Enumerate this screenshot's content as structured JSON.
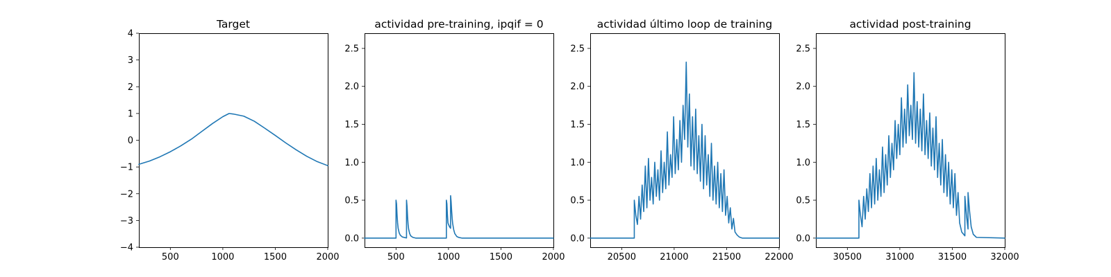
{
  "chart_data": [
    {
      "type": "line",
      "title": "Target",
      "xlabel": "",
      "ylabel": "",
      "xlim": [
        200,
        2000
      ],
      "ylim": [
        -4,
        4
      ],
      "xticks": [
        500,
        1000,
        1500,
        2000
      ],
      "xtick_labels": [
        "500",
        "1000",
        "1500",
        "2000"
      ],
      "yticks": [
        -4,
        -3,
        -2,
        -1,
        0,
        1,
        2,
        3,
        4
      ],
      "ytick_labels": [
        "−4",
        "−3",
        "−2",
        "−1",
        "0",
        "1",
        "2",
        "3",
        "4"
      ],
      "grid": false,
      "color": "#1f77b4",
      "series": [
        {
          "x": [
            200,
            300,
            400,
            500,
            600,
            700,
            800,
            900,
            1000,
            1060,
            1100,
            1200,
            1300,
            1400,
            1500,
            1600,
            1700,
            1800,
            1900,
            2000
          ],
          "y": [
            -0.9,
            -0.78,
            -0.62,
            -0.43,
            -0.21,
            0.04,
            0.33,
            0.62,
            0.88,
            1.0,
            0.98,
            0.9,
            0.71,
            0.45,
            0.18,
            -0.1,
            -0.36,
            -0.6,
            -0.8,
            -0.95
          ]
        }
      ]
    },
    {
      "type": "line",
      "title": "actividad pre-training, ipqif = 0",
      "xlabel": "",
      "ylabel": "",
      "xlim": [
        200,
        2000
      ],
      "ylim": [
        -0.12,
        2.7
      ],
      "xticks": [
        500,
        1000,
        1500,
        2000
      ],
      "xtick_labels": [
        "500",
        "1000",
        "1500",
        "2000"
      ],
      "yticks": [
        0.0,
        0.5,
        1.0,
        1.5,
        2.0,
        2.5
      ],
      "ytick_labels": [
        "0.0",
        "0.5",
        "1.0",
        "1.5",
        "2.0",
        "2.5"
      ],
      "grid": false,
      "color": "#1f77b4",
      "series": [
        {
          "x": [
            200,
            500,
            500,
            505,
            510,
            515,
            520,
            530,
            540,
            560,
            590,
            600,
            600,
            605,
            610,
            615,
            620,
            630,
            640,
            660,
            690,
            980,
            980,
            985,
            990,
            995,
            1000,
            1010,
            1020,
            1020,
            1025,
            1030,
            1035,
            1040,
            1050,
            1060,
            1080,
            1100,
            1130,
            2000
          ],
          "y": [
            0,
            0,
            0.5,
            0.45,
            0.3,
            0.2,
            0.13,
            0.07,
            0.04,
            0.015,
            0.005,
            0.002,
            0.5,
            0.42,
            0.28,
            0.18,
            0.12,
            0.06,
            0.03,
            0.01,
            0,
            0,
            0.5,
            0.45,
            0.3,
            0.2,
            0.18,
            0.15,
            0.13,
            0.56,
            0.48,
            0.36,
            0.26,
            0.19,
            0.11,
            0.06,
            0.02,
            0.008,
            0,
            0
          ]
        }
      ]
    },
    {
      "type": "line",
      "title": "actividad último loop de training",
      "xlabel": "",
      "ylabel": "",
      "xlim": [
        20200,
        22000
      ],
      "ylim": [
        -0.12,
        2.7
      ],
      "xticks": [
        20500,
        21000,
        21500,
        22000
      ],
      "xtick_labels": [
        "20500",
        "21000",
        "21500",
        "22000"
      ],
      "yticks": [
        0.0,
        0.5,
        1.0,
        1.5,
        2.0,
        2.5
      ],
      "ytick_labels": [
        "0.0",
        "0.5",
        "1.0",
        "1.5",
        "2.0",
        "2.5"
      ],
      "grid": false,
      "color": "#1f77b4",
      "series": [
        {
          "x": [
            20200,
            20620,
            20620,
            20635,
            20650,
            20665,
            20680,
            20695,
            20710,
            20725,
            20740,
            20755,
            20770,
            20785,
            20800,
            20815,
            20830,
            20845,
            20860,
            20875,
            20890,
            20905,
            20920,
            20935,
            20950,
            20965,
            20980,
            20995,
            21010,
            21025,
            21040,
            21055,
            21070,
            21085,
            21100,
            21115,
            21130,
            21145,
            21160,
            21175,
            21190,
            21205,
            21220,
            21235,
            21250,
            21265,
            21280,
            21295,
            21310,
            21325,
            21340,
            21355,
            21370,
            21385,
            21400,
            21415,
            21430,
            21445,
            21460,
            21475,
            21490,
            21505,
            21520,
            21535,
            21550,
            21565,
            21580,
            21600,
            21620,
            21650,
            22000
          ],
          "y": [
            0,
            0,
            0.5,
            0.3,
            0.18,
            0.55,
            0.25,
            0.7,
            0.35,
            0.95,
            0.4,
            1.05,
            0.5,
            0.8,
            0.45,
            1.0,
            0.55,
            0.9,
            0.5,
            1.15,
            0.6,
            1.0,
            0.65,
            1.4,
            0.7,
            1.1,
            0.8,
            1.6,
            0.85,
            1.3,
            0.9,
            1.55,
            1.0,
            1.75,
            1.3,
            2.32,
            1.2,
            1.9,
            0.95,
            1.6,
            0.9,
            1.7,
            0.85,
            1.35,
            0.75,
            1.5,
            0.65,
            1.35,
            0.7,
            1.1,
            0.55,
            1.25,
            0.5,
            0.95,
            0.45,
            1.0,
            0.4,
            0.85,
            0.35,
            0.9,
            0.3,
            0.55,
            0.2,
            0.4,
            0.12,
            0.26,
            0.08,
            0.04,
            0.015,
            0,
            0
          ]
        }
      ]
    },
    {
      "type": "line",
      "title": "actividad post-training",
      "xlabel": "",
      "ylabel": "",
      "xlim": [
        30200,
        32000
      ],
      "ylim": [
        -0.12,
        2.7
      ],
      "xticks": [
        30500,
        31000,
        31500,
        32000
      ],
      "xtick_labels": [
        "30500",
        "31000",
        "31500",
        "32000"
      ],
      "yticks": [
        0.0,
        0.5,
        1.0,
        1.5,
        2.0,
        2.5
      ],
      "ytick_labels": [
        "0.0",
        "0.5",
        "1.0",
        "1.5",
        "2.0",
        "2.5"
      ],
      "grid": false,
      "color": "#1f77b4",
      "series": [
        {
          "x": [
            30200,
            30610,
            30610,
            30625,
            30640,
            30655,
            30670,
            30685,
            30700,
            30715,
            30730,
            30745,
            30760,
            30775,
            30790,
            30805,
            30820,
            30835,
            30850,
            30865,
            30880,
            30895,
            30910,
            30925,
            30940,
            30955,
            30970,
            30985,
            31000,
            31015,
            31030,
            31045,
            31060,
            31075,
            31090,
            31105,
            31120,
            31135,
            31150,
            31165,
            31180,
            31195,
            31210,
            31225,
            31240,
            31255,
            31270,
            31285,
            31300,
            31315,
            31330,
            31345,
            31360,
            31375,
            31390,
            31405,
            31420,
            31435,
            31450,
            31465,
            31480,
            31495,
            31510,
            31525,
            31540,
            31555,
            31570,
            31590,
            31620,
            31620,
            31635,
            31650,
            31650,
            31665,
            31680,
            31700,
            31730,
            32000
          ],
          "y": [
            0,
            0,
            0.5,
            0.3,
            0.15,
            0.55,
            0.25,
            0.65,
            0.35,
            0.85,
            0.4,
            0.95,
            0.45,
            1.05,
            0.5,
            0.9,
            0.55,
            1.2,
            0.6,
            1.1,
            0.7,
            1.35,
            0.8,
            1.25,
            0.9,
            1.55,
            1.05,
            1.5,
            1.1,
            1.85,
            1.2,
            1.7,
            1.25,
            2.02,
            1.35,
            1.75,
            1.3,
            2.18,
            1.25,
            1.8,
            1.2,
            1.7,
            1.15,
            1.9,
            1.1,
            1.55,
            1.05,
            1.65,
            0.95,
            1.45,
            0.9,
            1.6,
            0.8,
            1.25,
            0.7,
            1.3,
            0.6,
            1.1,
            0.55,
            1.0,
            0.45,
            0.9,
            0.4,
            0.85,
            0.3,
            0.6,
            0.2,
            0.08,
            0.03,
            0.55,
            0.3,
            0.12,
            0.6,
            0.35,
            0.15,
            0.05,
            0.01,
            0
          ]
        }
      ]
    }
  ]
}
